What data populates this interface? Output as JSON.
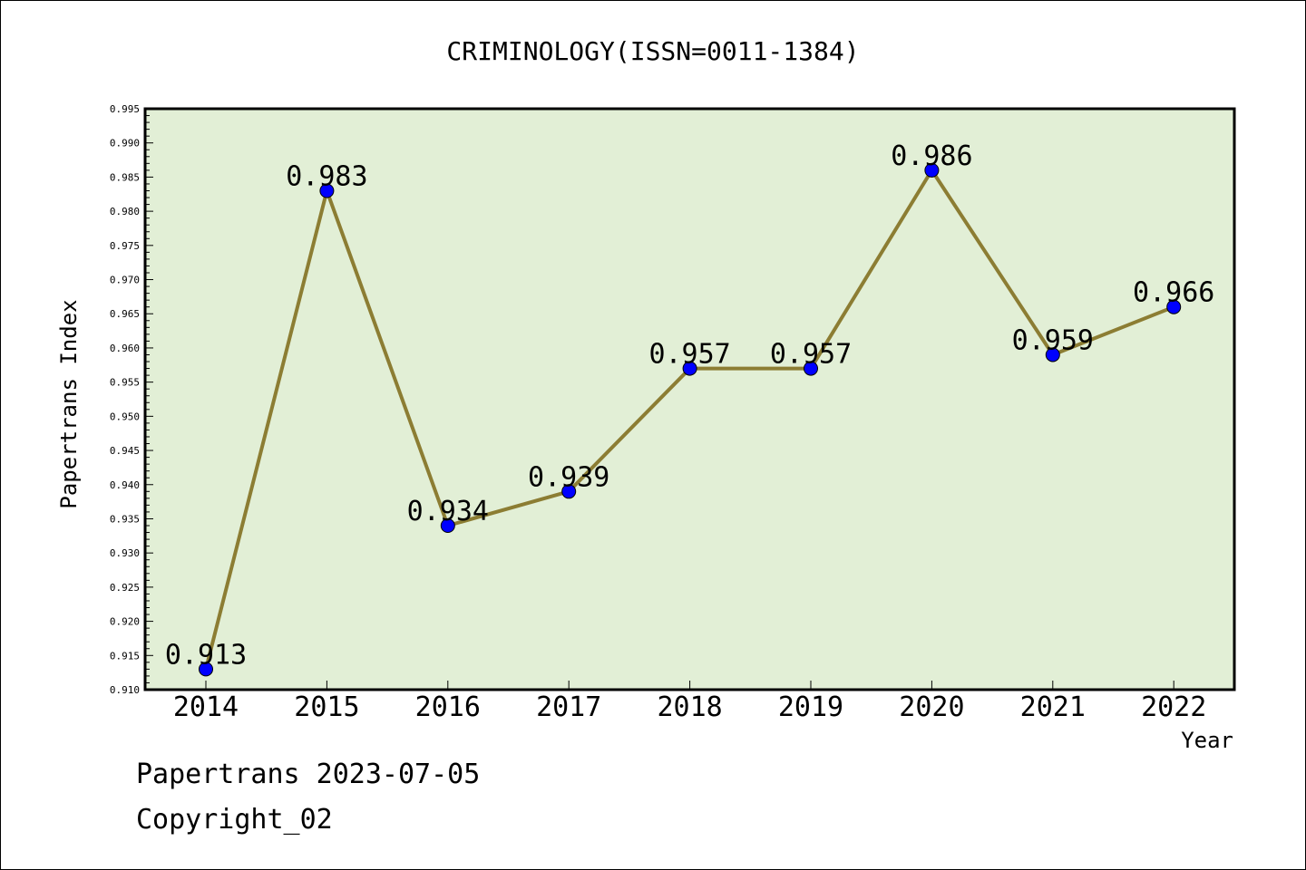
{
  "chart_data": {
    "type": "line",
    "title": "CRIMINOLOGY(ISSN=0011-1384)",
    "xlabel": "Year",
    "ylabel": "Papertrans Index",
    "x": [
      "2014",
      "2015",
      "2016",
      "2017",
      "2018",
      "2019",
      "2020",
      "2021",
      "2022"
    ],
    "series": [
      {
        "values": [
          0.913,
          0.983,
          0.934,
          0.939,
          0.957,
          0.957,
          0.986,
          0.959,
          0.966
        ],
        "labels": [
          "0.913",
          "0.983",
          "0.934",
          "0.939",
          "0.957",
          "0.957",
          "0.986",
          "0.959",
          "0.966"
        ]
      }
    ],
    "ylim": [
      0.91,
      0.995
    ],
    "y_ticks": [
      "0.910",
      "0.915",
      "0.920",
      "0.925",
      "0.930",
      "0.935",
      "0.940",
      "0.945",
      "0.950",
      "0.955",
      "0.960",
      "0.965",
      "0.970",
      "0.975",
      "0.980",
      "0.985",
      "0.990",
      "0.995"
    ],
    "grid": false,
    "colors": {
      "plot_background": "#e2efd6",
      "line": "#8c7d33",
      "marker": "#0000ff"
    }
  },
  "footer": {
    "line1": "Papertrans 2023-07-05",
    "line2": "Copyright_02"
  }
}
